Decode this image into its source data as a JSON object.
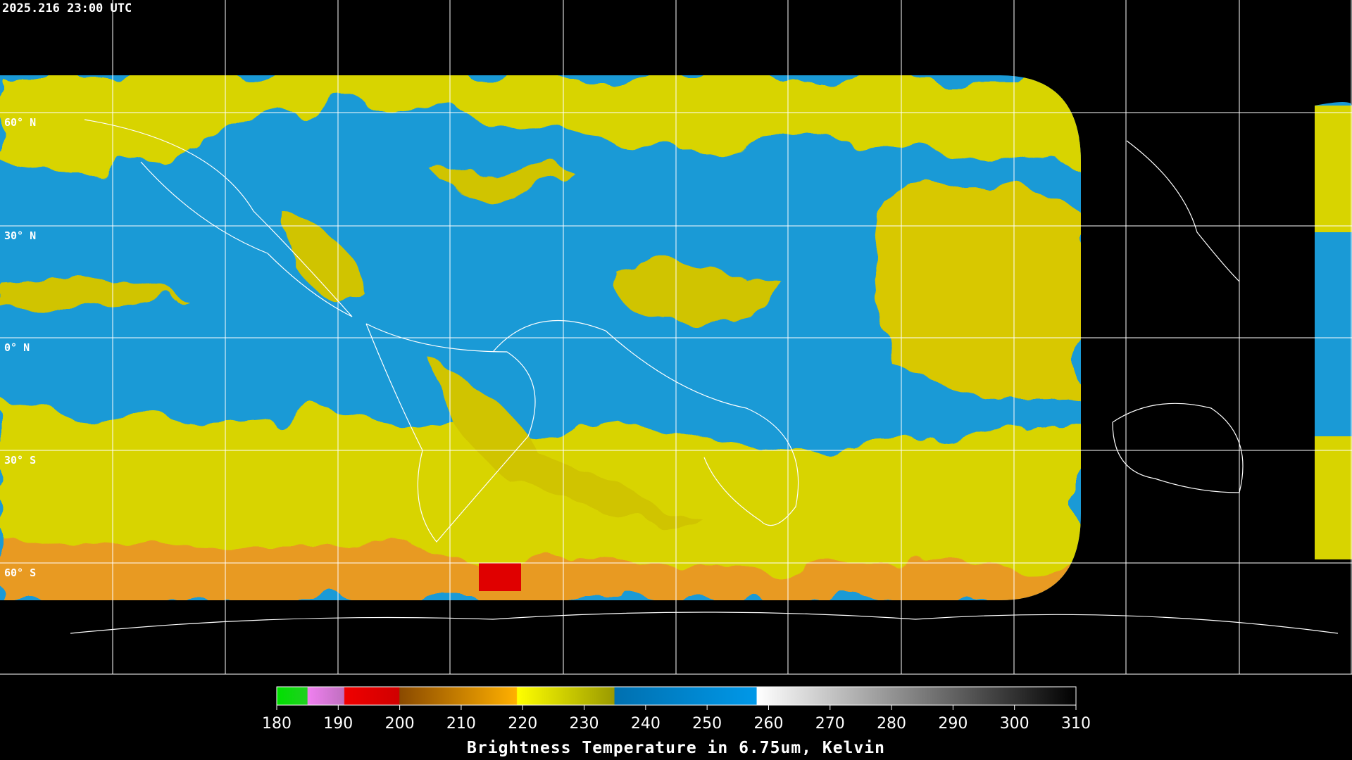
{
  "header": {
    "timestamp": "2025.216 23:00 UTC"
  },
  "latitude_labels": [
    "60° N",
    "30° N",
    "0° N",
    "30° S",
    "60° S"
  ],
  "colorbar": {
    "ticks": [
      180,
      190,
      200,
      210,
      220,
      230,
      240,
      250,
      260,
      270,
      280,
      290,
      300,
      310
    ],
    "title": "Brightness Temperature in 6.75um, Kelvin"
  }
}
